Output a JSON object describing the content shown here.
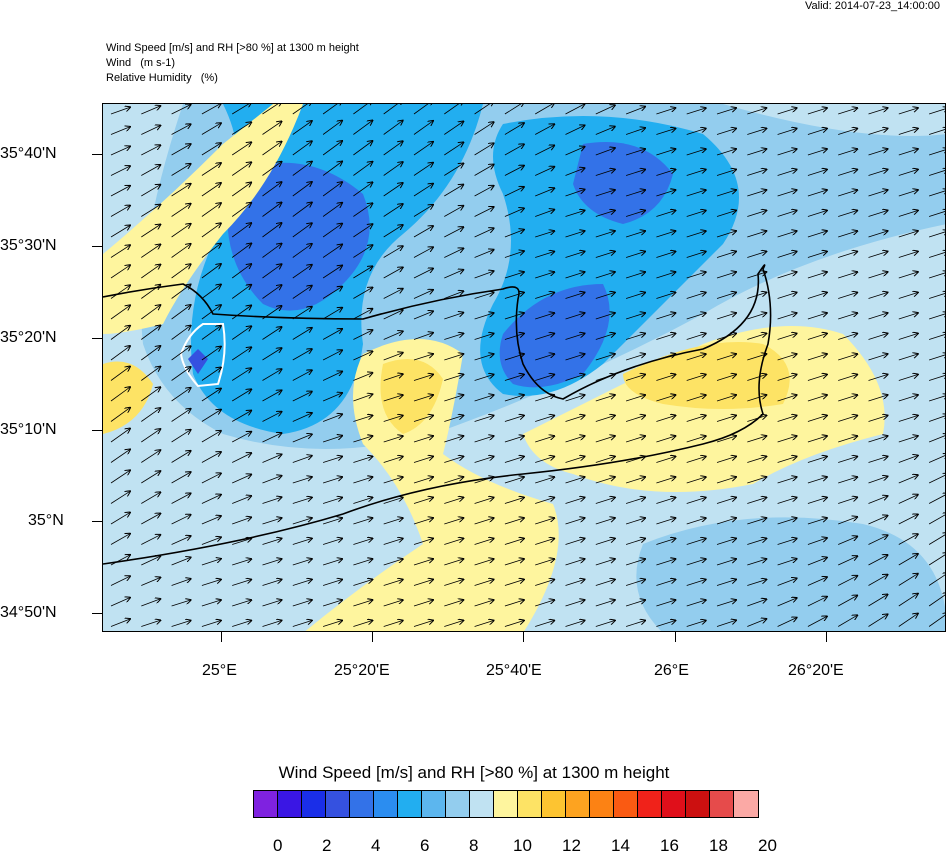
{
  "valid_label": "Valid: 2014-07-23_14:00:00",
  "titles": {
    "line1": "Wind Speed [m/s] and RH [>80 %] at 1300 m height",
    "line2": "Wind   (m s-1)",
    "line3": "Relative Humidity   (%)"
  },
  "lat_labels": [
    "35°40'N",
    "35°30'N",
    "35°20'N",
    "35°10'N",
    "35°N",
    "34°50'N"
  ],
  "lon_labels": [
    "25°E",
    "25°20'E",
    "25°40'E",
    "26°E",
    "26°20'E"
  ],
  "colorbar": {
    "title": "Wind Speed [m/s] and RH [>80 %] at 1300 m height",
    "labels": [
      "0",
      "2",
      "4",
      "6",
      "8",
      "10",
      "12",
      "14",
      "16",
      "18",
      "20"
    ],
    "colors": [
      "#7f22e0",
      "#3a16e4",
      "#1a2ee8",
      "#3551e0",
      "#3372e8",
      "#2b8df0",
      "#22aef0",
      "#5cb6ee",
      "#93cdee",
      "#c0e2f2",
      "#fef59e",
      "#fde365",
      "#fdc431",
      "#fda320",
      "#fc8214",
      "#fa5a12",
      "#f0221a",
      "#e00f1a",
      "#cc1010",
      "#e64b4b",
      "#fba9a5"
    ]
  },
  "wind_direction": "southwest to northeast"
}
